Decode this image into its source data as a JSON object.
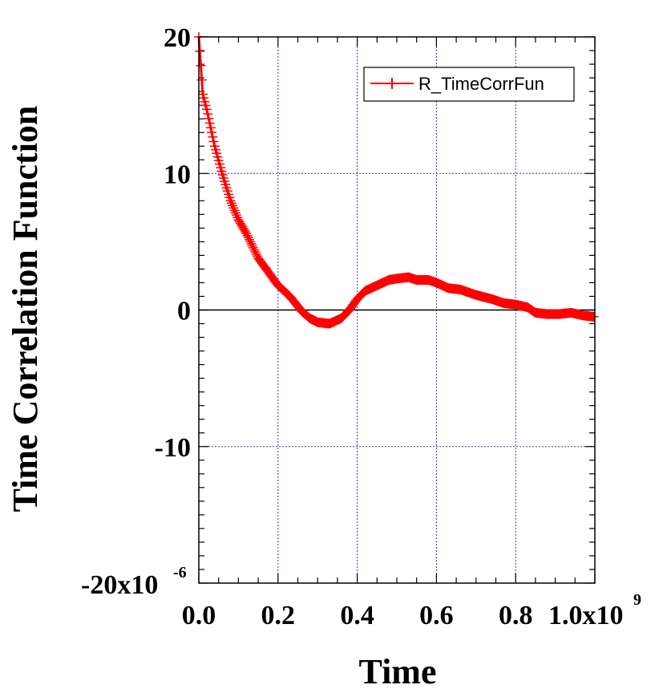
{
  "chart_data": {
    "type": "line",
    "xlabel": "Time",
    "ylabel": "Time Correlation Function",
    "x_scale_label": "1.0x10",
    "x_scale_exponent": "9",
    "y_scale_label": "-20x10",
    "y_scale_exponent": "-6",
    "xlim": [
      0,
      1000000000.0
    ],
    "ylim": [
      -2e-05,
      2e-05
    ],
    "x_ticks": [
      0,
      200000000.0,
      400000000.0,
      600000000.0,
      800000000.0,
      1000000000.0
    ],
    "x_tick_labels": [
      "0.0",
      "0.2",
      "0.4",
      "0.6",
      "0.8",
      ""
    ],
    "y_ticks": [
      -2e-05,
      -1e-05,
      0,
      1e-05,
      2e-05
    ],
    "y_tick_labels": [
      "",
      "-10",
      "0",
      "10",
      "20"
    ],
    "grid": true,
    "zero_line": true,
    "legend": {
      "position": "top-right",
      "entries": [
        "R_TimeCorrFun"
      ]
    },
    "colors": {
      "series": "#ff0000",
      "grid": "#3333cc",
      "axis": "#000000"
    },
    "series": [
      {
        "name": "R_TimeCorrFun",
        "marker": "plus",
        "x": [
          0,
          10000000.0,
          20000000.0,
          40000000.0,
          60000000.0,
          80000000.0,
          100000000.0,
          120000000.0,
          150000000.0,
          180000000.0,
          200000000.0,
          230000000.0,
          260000000.0,
          280000000.0,
          300000000.0,
          330000000.0,
          360000000.0,
          380000000.0,
          400000000.0,
          420000000.0,
          450000000.0,
          480000000.0,
          500000000.0,
          530000000.0,
          550000000.0,
          580000000.0,
          600000000.0,
          630000000.0,
          660000000.0,
          700000000.0,
          740000000.0,
          770000000.0,
          800000000.0,
          830000000.0,
          850000000.0,
          880000000.0,
          910000000.0,
          940000000.0,
          970000000.0,
          1000000000.0
        ],
        "y": [
          2e-05,
          1.58e-05,
          1.47e-05,
          1.2e-05,
          9.9e-06,
          8e-06,
          6.6e-06,
          5.6e-06,
          3.8e-06,
          2.6e-06,
          1.8e-06,
          1e-06,
          -1e-07,
          -6e-07,
          -9e-07,
          -1e-06,
          -6e-07,
          0.0,
          8e-07,
          1.4e-06,
          1.8e-06,
          2.2e-06,
          2.3e-06,
          2.4e-06,
          2.2e-06,
          2.2e-06,
          2e-06,
          1.6e-06,
          1.5e-06,
          1.1e-06,
          8e-07,
          5e-07,
          4e-07,
          2e-07,
          -2e-07,
          -3e-07,
          -3e-07,
          -2e-07,
          -4e-07,
          -5e-07
        ]
      }
    ]
  }
}
